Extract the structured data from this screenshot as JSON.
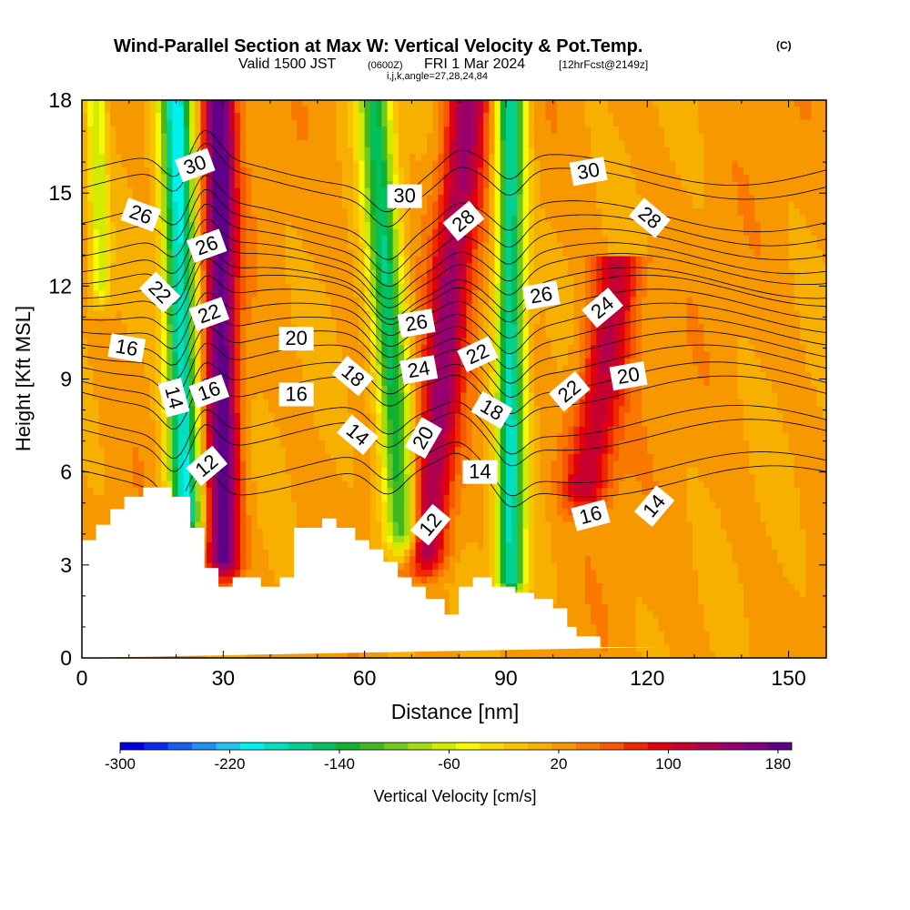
{
  "chart_data": {
    "type": "heatmap",
    "title": "Wind-Parallel Section at Max W: Vertical Velocity & Pot.Temp.",
    "title_mark": "(C)",
    "subtitle_main": "Valid 1500 JST",
    "subtitle_utc": "(0600Z)",
    "subtitle_date": "FRI 1 Mar 2024",
    "subtitle_fcst": "[12hrFcst@2149z]",
    "subtitle_indices": "i,j,k,angle=27,28,24,84",
    "xlabel": "Distance [nm]",
    "ylabel": "Height [Kft MSL]",
    "xlim": [
      0,
      158
    ],
    "ylim": [
      0,
      18
    ],
    "x_ticks": [
      0,
      30,
      60,
      90,
      120,
      150
    ],
    "y_ticks": [
      0,
      3,
      6,
      9,
      12,
      15,
      18
    ],
    "colorbar": {
      "label": "Vertical Velocity [cm/s]",
      "range": [
        -300,
        190
      ],
      "tick_labels": [
        -300,
        -220,
        -140,
        -60,
        20,
        100,
        180
      ],
      "colors": [
        "#0000e0",
        "#0a2cf0",
        "#1760f0",
        "#1e90f0",
        "#20c4f0",
        "#00f0f0",
        "#00e0c0",
        "#00d090",
        "#00c060",
        "#10b030",
        "#40b820",
        "#70c820",
        "#a0dc10",
        "#d0ec00",
        "#f8f800",
        "#f8dc00",
        "#f8c400",
        "#f8b000",
        "#f89800",
        "#f87800",
        "#f85800",
        "#f02800",
        "#e00010",
        "#c80030",
        "#b00050",
        "#980070",
        "#800080",
        "#600088"
      ]
    },
    "terrain_profile": {
      "x": [
        0,
        3,
        3,
        6,
        6,
        9,
        9,
        13,
        13,
        19,
        19,
        23,
        23,
        26,
        26,
        29,
        29,
        32,
        32,
        38,
        38,
        42,
        42,
        45,
        45,
        51,
        51,
        54,
        54,
        58,
        58,
        61,
        61,
        64,
        64,
        67,
        67,
        70,
        70,
        73,
        73,
        77,
        77,
        80,
        80,
        83,
        83,
        87,
        87,
        92,
        92,
        96,
        96,
        100,
        100,
        103,
        103,
        105,
        105,
        110,
        110,
        112,
        112,
        116,
        116,
        122,
        122,
        158
      ],
      "height": [
        3.8,
        3.8,
        4.3,
        4.3,
        4.8,
        4.8,
        5.2,
        5.2,
        5.5,
        5.5,
        5.2,
        5.2,
        4.2,
        4.2,
        2.9,
        2.9,
        2.3,
        2.3,
        2.6,
        2.6,
        2.3,
        2.3,
        2.6,
        2.6,
        4.2,
        4.2,
        4.5,
        4.5,
        4.2,
        4.2,
        3.8,
        3.8,
        3.5,
        3.5,
        3.1,
        3.1,
        2.6,
        2.6,
        2.3,
        2.3,
        1.9,
        1.9,
        1.4,
        1.4,
        2.3,
        2.3,
        2.6,
        2.6,
        2.3,
        2.3,
        2.1,
        2.1,
        1.9,
        1.9,
        1.6,
        1.6,
        1.0,
        1.0,
        0.7,
        0.7,
        0.35,
        0.35,
        0.35,
        0.35,
        0.35,
        0.35
      ]
    },
    "updrafts": [
      {
        "x_top": 29,
        "x_bottom": 30,
        "top": 18.0,
        "bottom": 3.2,
        "width": 3.5,
        "peak": 170
      },
      {
        "x_top": 82,
        "x_bottom": 73,
        "top": 18.0,
        "bottom": 3.5,
        "width": 4.5,
        "peak": 120
      },
      {
        "x_top": 114,
        "x_bottom": 107,
        "top": 12.5,
        "bottom": 5.5,
        "width": 5.0,
        "peak": 100
      }
    ],
    "downdrafts": [
      {
        "x_top": 20,
        "x_bottom": 22,
        "top": 18.0,
        "bottom": 4.5,
        "width": 3.5,
        "peak": -220
      },
      {
        "x_top": 62,
        "x_bottom": 68,
        "top": 18.0,
        "bottom": 4.0,
        "width": 3.5,
        "peak": -170
      },
      {
        "x_top": 91,
        "x_bottom": 91,
        "top": 18.0,
        "bottom": 2.5,
        "width": 3.0,
        "peak": -200
      },
      {
        "x_top": 3,
        "x_bottom": 4,
        "top": 18.0,
        "bottom": 12.0,
        "width": 2.0,
        "peak": -80
      }
    ],
    "theta_contours": [
      {
        "level": 12,
        "base_height": 5.7
      },
      {
        "level": 14,
        "base_height": 7.2
      },
      {
        "level": 16,
        "base_height": 8.6
      },
      {
        "level": 18,
        "base_height": 9.6
      },
      {
        "level": 20,
        "base_height": 10.5
      },
      {
        "level": 22,
        "base_height": 11.4
      },
      {
        "level": 24,
        "base_height": 12.1
      },
      {
        "level": 26,
        "base_height": 12.9
      },
      {
        "level": 28,
        "base_height": 13.8
      },
      {
        "level": 30,
        "base_height": 15.3
      }
    ],
    "contour_labels": [
      {
        "text": "30",
        "x": 24,
        "y": 15.9,
        "rot": -20
      },
      {
        "text": "26",
        "x": 12.5,
        "y": 14.3,
        "rot": 20
      },
      {
        "text": "26",
        "x": 26.5,
        "y": 13.3,
        "rot": -20
      },
      {
        "text": "22",
        "x": 16.5,
        "y": 11.8,
        "rot": 45
      },
      {
        "text": "22",
        "x": 27,
        "y": 11.1,
        "rot": -20
      },
      {
        "text": "16",
        "x": 9.5,
        "y": 10.0,
        "rot": 10
      },
      {
        "text": "14",
        "x": 19.5,
        "y": 8.4,
        "rot": 75
      },
      {
        "text": "16",
        "x": 27,
        "y": 8.6,
        "rot": -20
      },
      {
        "text": "12",
        "x": 26.5,
        "y": 6.2,
        "rot": -40
      },
      {
        "text": "20",
        "x": 45.5,
        "y": 10.3,
        "rot": 0
      },
      {
        "text": "16",
        "x": 45.5,
        "y": 8.5,
        "rot": 0
      },
      {
        "text": "18",
        "x": 57.5,
        "y": 9.1,
        "rot": 40
      },
      {
        "text": "14",
        "x": 58.5,
        "y": 7.2,
        "rot": 40
      },
      {
        "text": "30",
        "x": 68.5,
        "y": 14.9,
        "rot": 0
      },
      {
        "text": "26",
        "x": 71,
        "y": 10.8,
        "rot": -10
      },
      {
        "text": "24",
        "x": 71.5,
        "y": 9.3,
        "rot": -10
      },
      {
        "text": "20",
        "x": 72.5,
        "y": 7.1,
        "rot": -60
      },
      {
        "text": "12",
        "x": 74,
        "y": 4.3,
        "rot": -50
      },
      {
        "text": "28",
        "x": 81,
        "y": 14.1,
        "rot": -40
      },
      {
        "text": "22",
        "x": 84,
        "y": 9.8,
        "rot": -25
      },
      {
        "text": "18",
        "x": 87,
        "y": 8.0,
        "rot": 30
      },
      {
        "text": "14",
        "x": 84.5,
        "y": 6.0,
        "rot": 0
      },
      {
        "text": "26",
        "x": 97.5,
        "y": 11.7,
        "rot": -10
      },
      {
        "text": "30",
        "x": 107.5,
        "y": 15.7,
        "rot": -10
      },
      {
        "text": "28",
        "x": 120.5,
        "y": 14.2,
        "rot": 40
      },
      {
        "text": "24",
        "x": 110.5,
        "y": 11.3,
        "rot": -40
      },
      {
        "text": "22",
        "x": 103.5,
        "y": 8.6,
        "rot": -40
      },
      {
        "text": "20",
        "x": 116,
        "y": 9.1,
        "rot": -10
      },
      {
        "text": "16",
        "x": 108,
        "y": 4.6,
        "rot": -15
      },
      {
        "text": "14",
        "x": 121.5,
        "y": 4.9,
        "rot": -50
      }
    ]
  }
}
